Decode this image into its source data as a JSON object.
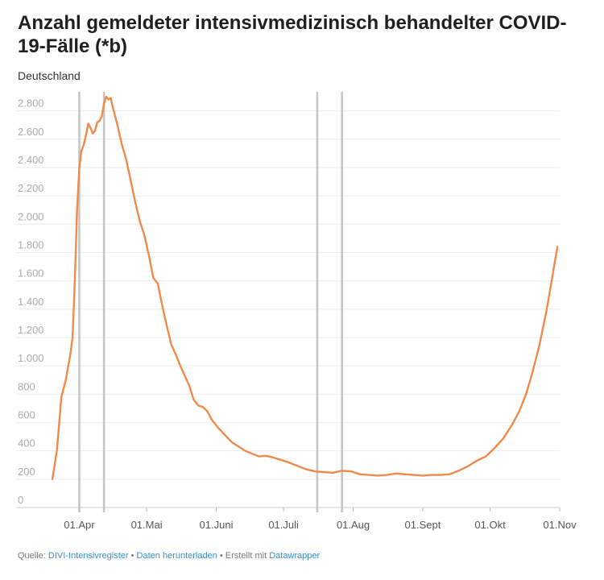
{
  "chart_data": {
    "type": "line",
    "title": "Anzahl gemeldeter intensivmedizinisch behandelter COVID-19-Fälle (*b)",
    "subtitle": "Deutschland",
    "x_range": [
      "2020-03-20",
      "2020-11-01"
    ],
    "ylim": [
      0,
      2900
    ],
    "y_ticks": [
      0,
      200,
      400,
      600,
      800,
      1000,
      1200,
      1400,
      1600,
      1800,
      2000,
      2200,
      2400,
      2600,
      2800
    ],
    "y_tick_labels": [
      "0",
      "200",
      "400",
      "600",
      "800",
      "1.000",
      "1.200",
      "1.400",
      "1.600",
      "1.800",
      "2.000",
      "2.200",
      "2.400",
      "2.600",
      "2.800"
    ],
    "x_ticks": [
      {
        "date": "2020-04-01",
        "label": "01.Apr"
      },
      {
        "date": "2020-05-01",
        "label": "01.Mai"
      },
      {
        "date": "2020-06-01",
        "label": "01.Juni"
      },
      {
        "date": "2020-07-01",
        "label": "01.Juli"
      },
      {
        "date": "2020-08-01",
        "label": "01.Aug"
      },
      {
        "date": "2020-09-01",
        "label": "01.Sept"
      },
      {
        "date": "2020-10-01",
        "label": "01.Okt"
      },
      {
        "date": "2020-11-01",
        "label": "01.Nov"
      }
    ],
    "grid": true,
    "vertical_lines": [
      "2020-04-01",
      "2020-04-12",
      "2020-07-16",
      "2020-07-27"
    ],
    "series": [
      {
        "color": "#f08a4b",
        "points": [
          [
            "2020-03-20",
            200
          ],
          [
            "2020-03-22",
            400
          ],
          [
            "2020-03-24",
            780
          ],
          [
            "2020-03-26",
            900
          ],
          [
            "2020-03-28",
            1080
          ],
          [
            "2020-03-29",
            1200
          ],
          [
            "2020-03-30",
            1600
          ],
          [
            "2020-03-31",
            2100
          ],
          [
            "2020-04-01",
            2400
          ],
          [
            "2020-04-02",
            2520
          ],
          [
            "2020-04-03",
            2560
          ],
          [
            "2020-04-04",
            2630
          ],
          [
            "2020-04-05",
            2710
          ],
          [
            "2020-04-06",
            2680
          ],
          [
            "2020-04-07",
            2640
          ],
          [
            "2020-04-08",
            2660
          ],
          [
            "2020-04-09",
            2720
          ],
          [
            "2020-04-10",
            2730
          ],
          [
            "2020-04-11",
            2760
          ],
          [
            "2020-04-12",
            2850
          ],
          [
            "2020-04-13",
            2900
          ],
          [
            "2020-04-14",
            2880
          ],
          [
            "2020-04-15",
            2890
          ],
          [
            "2020-04-16",
            2820
          ],
          [
            "2020-04-18",
            2700
          ],
          [
            "2020-04-20",
            2560
          ],
          [
            "2020-04-22",
            2450
          ],
          [
            "2020-04-24",
            2300
          ],
          [
            "2020-04-26",
            2150
          ],
          [
            "2020-04-28",
            2020
          ],
          [
            "2020-04-30",
            1920
          ],
          [
            "2020-05-02",
            1780
          ],
          [
            "2020-05-04",
            1620
          ],
          [
            "2020-05-06",
            1580
          ],
          [
            "2020-05-08",
            1420
          ],
          [
            "2020-05-10",
            1280
          ],
          [
            "2020-05-12",
            1150
          ],
          [
            "2020-05-14",
            1080
          ],
          [
            "2020-05-16",
            1000
          ],
          [
            "2020-05-18",
            930
          ],
          [
            "2020-05-20",
            860
          ],
          [
            "2020-05-22",
            760
          ],
          [
            "2020-05-24",
            720
          ],
          [
            "2020-05-26",
            710
          ],
          [
            "2020-05-28",
            680
          ],
          [
            "2020-05-30",
            620
          ],
          [
            "2020-06-02",
            560
          ],
          [
            "2020-06-05",
            510
          ],
          [
            "2020-06-08",
            460
          ],
          [
            "2020-06-11",
            430
          ],
          [
            "2020-06-14",
            400
          ],
          [
            "2020-06-17",
            380
          ],
          [
            "2020-06-20",
            360
          ],
          [
            "2020-06-23",
            365
          ],
          [
            "2020-06-26",
            355
          ],
          [
            "2020-06-29",
            340
          ],
          [
            "2020-07-03",
            320
          ],
          [
            "2020-07-07",
            295
          ],
          [
            "2020-07-11",
            270
          ],
          [
            "2020-07-15",
            255
          ],
          [
            "2020-07-19",
            250
          ],
          [
            "2020-07-23",
            245
          ],
          [
            "2020-07-27",
            260
          ],
          [
            "2020-07-31",
            255
          ],
          [
            "2020-08-04",
            235
          ],
          [
            "2020-08-08",
            230
          ],
          [
            "2020-08-12",
            225
          ],
          [
            "2020-08-16",
            230
          ],
          [
            "2020-08-20",
            240
          ],
          [
            "2020-08-24",
            235
          ],
          [
            "2020-08-28",
            230
          ],
          [
            "2020-09-01",
            225
          ],
          [
            "2020-09-05",
            230
          ],
          [
            "2020-09-09",
            230
          ],
          [
            "2020-09-13",
            235
          ],
          [
            "2020-09-17",
            260
          ],
          [
            "2020-09-21",
            290
          ],
          [
            "2020-09-25",
            330
          ],
          [
            "2020-09-29",
            360
          ],
          [
            "2020-10-03",
            420
          ],
          [
            "2020-10-07",
            490
          ],
          [
            "2020-10-11",
            590
          ],
          [
            "2020-10-14",
            680
          ],
          [
            "2020-10-17",
            800
          ],
          [
            "2020-10-20",
            960
          ],
          [
            "2020-10-23",
            1150
          ],
          [
            "2020-10-26",
            1380
          ],
          [
            "2020-10-28",
            1560
          ],
          [
            "2020-10-30",
            1750
          ],
          [
            "2020-10-31",
            1840
          ]
        ]
      }
    ]
  },
  "footer": {
    "prefix": "Quelle: ",
    "source_link": "DIVI-Intensivregister",
    "sep1": " • ",
    "download_link": "Daten herunterladen",
    "sep2": " • Erstellt mit ",
    "tool_link": "Datawrapper"
  }
}
